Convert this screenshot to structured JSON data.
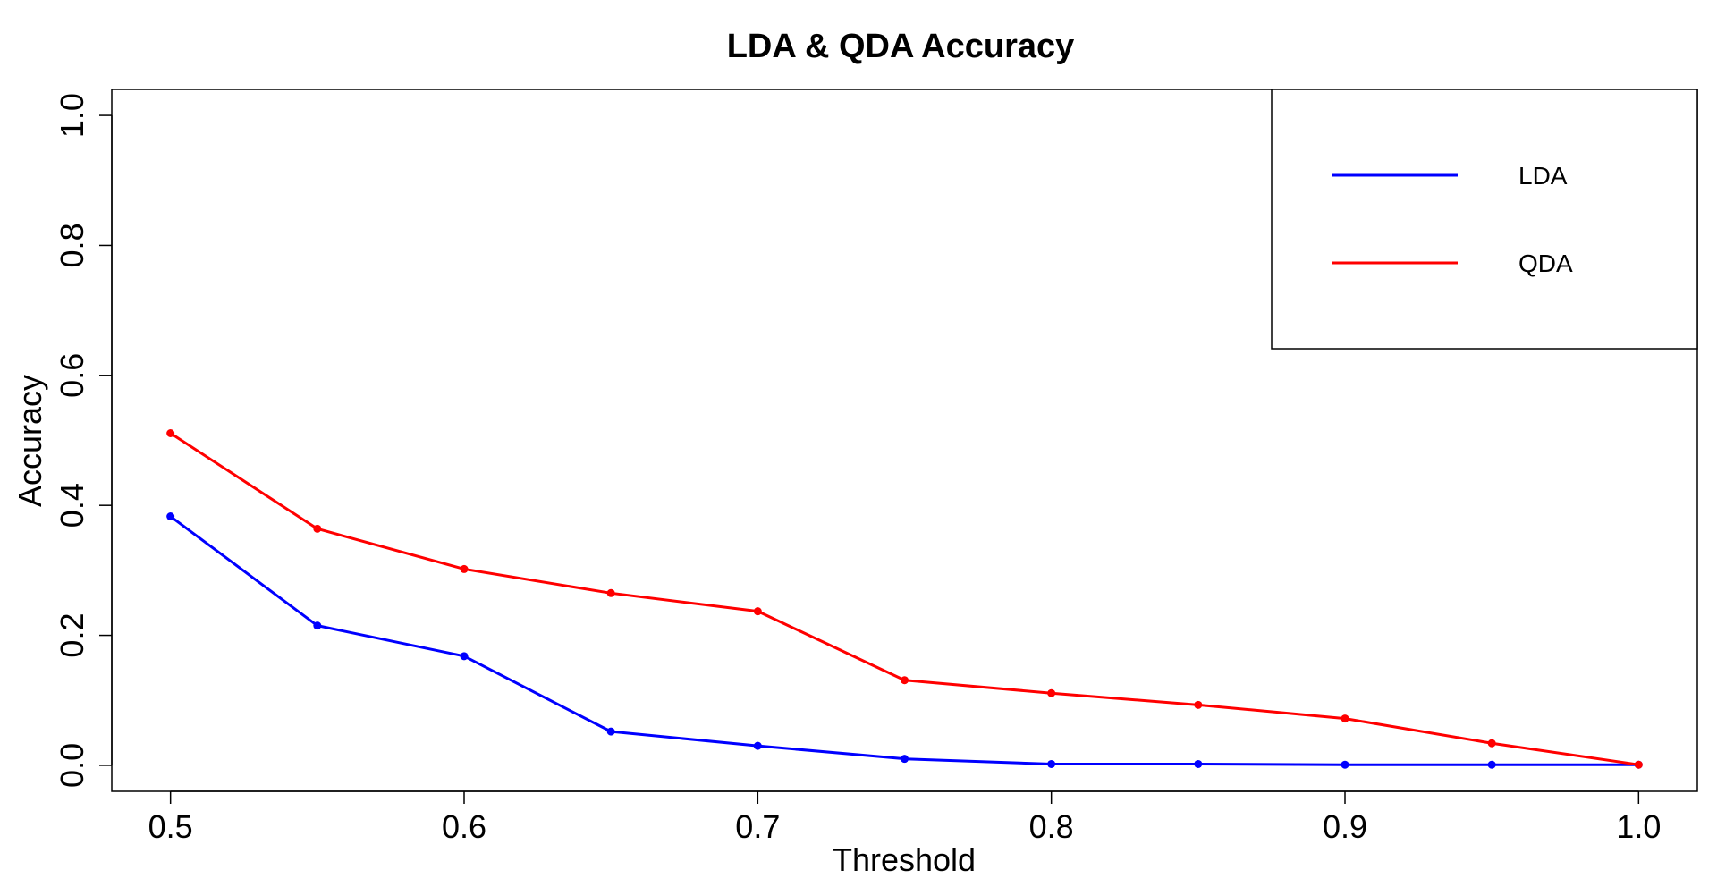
{
  "chart_data": {
    "type": "line",
    "title": "LDA & QDA Accuracy",
    "xlabel": "Threshold",
    "ylabel": "Accuracy",
    "x": [
      0.5,
      0.55,
      0.6,
      0.65,
      0.7,
      0.75,
      0.8,
      0.85,
      0.9,
      0.95,
      1.0
    ],
    "xlim": [
      0.48,
      1.02
    ],
    "ylim": [
      -0.04,
      1.04
    ],
    "xticks": [
      "0.5",
      "0.6",
      "0.7",
      "0.8",
      "0.9",
      "1.0"
    ],
    "xtick_values": [
      0.5,
      0.6,
      0.7,
      0.8,
      0.9,
      1.0
    ],
    "yticks": [
      "0.0",
      "0.2",
      "0.4",
      "0.6",
      "0.8",
      "1.0"
    ],
    "ytick_values": [
      0.0,
      0.2,
      0.4,
      0.6,
      0.8,
      1.0
    ],
    "grid": false,
    "legend_position": "top-right",
    "series": [
      {
        "name": "LDA",
        "color": "#0000ff",
        "values": [
          0.383,
          0.215,
          0.168,
          0.052,
          0.03,
          0.01,
          0.002,
          0.002,
          0.001,
          0.001,
          0.001
        ]
      },
      {
        "name": "QDA",
        "color": "#ff0000",
        "values": [
          0.511,
          0.364,
          0.302,
          0.265,
          0.237,
          0.131,
          0.111,
          0.093,
          0.072,
          0.034,
          0.001
        ]
      }
    ]
  }
}
